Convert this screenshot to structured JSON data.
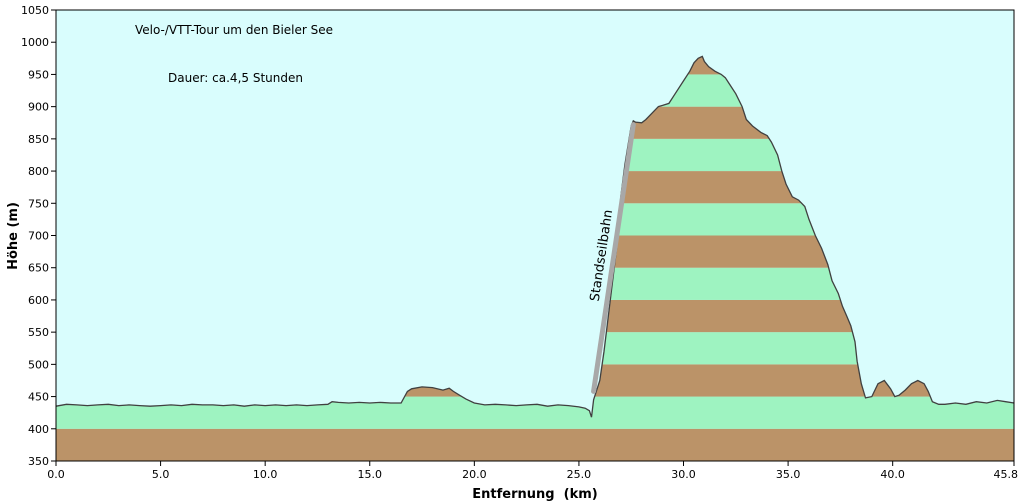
{
  "chart_data": {
    "type": "area",
    "title": "Velo-/VTT-Tour um den Bieler See",
    "subtitle": "Dauer: ca.4,5 Stunden",
    "xlabel": "Entfernung  (km)",
    "ylabel": "Höhe (m)",
    "xlim": [
      0,
      45.8
    ],
    "ylim": [
      350,
      1050
    ],
    "x_ticks": [
      0,
      5,
      10,
      15,
      20,
      25,
      30,
      35,
      40,
      45.8
    ],
    "x_tick_labels": [
      "0.0",
      "5.0",
      "10.0",
      "15.0",
      "20.0",
      "25.0",
      "30.0",
      "35.0",
      "40.0",
      "45.8"
    ],
    "y_ticks": [
      350,
      400,
      450,
      500,
      550,
      600,
      650,
      700,
      750,
      800,
      850,
      900,
      950,
      1000,
      1050
    ],
    "y_tick_labels": [
      "350",
      "400",
      "450",
      "500",
      "550",
      "600",
      "650",
      "700",
      "750",
      "800",
      "850",
      "900",
      "950",
      "1000",
      "1050"
    ],
    "band_interval": 50,
    "colors": {
      "plot_background": "#d9fdfd",
      "band_brown": "#bb9368",
      "band_green": "#9ef3c1",
      "profile_line": "#404040",
      "cable_line": "#a8a8a8"
    },
    "annotation": {
      "text": "Standseilbahn",
      "from": {
        "x": 25.7,
        "y": 458
      },
      "to": {
        "x": 27.6,
        "y": 872
      }
    },
    "x": [
      0,
      0.5,
      1.0,
      1.5,
      2.0,
      2.5,
      3.0,
      3.5,
      4.0,
      4.5,
      5.0,
      5.5,
      6.0,
      6.5,
      7.0,
      7.5,
      8.0,
      8.5,
      9.0,
      9.5,
      10.0,
      10.5,
      11.0,
      11.5,
      12.0,
      12.5,
      13.0,
      13.2,
      13.5,
      14.0,
      14.5,
      15.0,
      15.5,
      16.0,
      16.5,
      16.8,
      17.0,
      17.5,
      18.0,
      18.5,
      18.8,
      19.0,
      19.3,
      19.6,
      20.0,
      20.5,
      21.0,
      21.5,
      22.0,
      22.5,
      23.0,
      23.5,
      24.0,
      24.5,
      25.0,
      25.3,
      25.5,
      25.6,
      25.7,
      26.0,
      26.2,
      26.5,
      26.8,
      27.0,
      27.2,
      27.4,
      27.5,
      27.6,
      27.7,
      28.0,
      28.2,
      28.5,
      28.8,
      29.0,
      29.3,
      29.6,
      30.0,
      30.3,
      30.5,
      30.7,
      30.9,
      31.0,
      31.2,
      31.5,
      31.8,
      32.0,
      32.2,
      32.5,
      32.8,
      33.0,
      33.3,
      33.7,
      34.0,
      34.2,
      34.5,
      34.7,
      34.9,
      35.2,
      35.5,
      35.8,
      36.0,
      36.3,
      36.6,
      36.9,
      37.1,
      37.4,
      37.6,
      37.8,
      38.0,
      38.2,
      38.3,
      38.5,
      38.7,
      39.0,
      39.3,
      39.6,
      39.9,
      40.1,
      40.3,
      40.6,
      40.9,
      41.2,
      41.5,
      41.7,
      41.9,
      42.2,
      42.5,
      43.0,
      43.5,
      44.0,
      44.5,
      45.0,
      45.4,
      45.8
    ],
    "y": [
      435,
      438,
      437,
      436,
      437,
      438,
      436,
      437,
      436,
      435,
      436,
      437,
      436,
      438,
      437,
      437,
      436,
      437,
      435,
      437,
      436,
      437,
      436,
      437,
      436,
      437,
      438,
      442,
      441,
      440,
      441,
      440,
      441,
      440,
      440,
      458,
      462,
      465,
      464,
      460,
      463,
      458,
      452,
      446,
      440,
      437,
      438,
      437,
      436,
      437,
      438,
      435,
      437,
      436,
      434,
      432,
      428,
      418,
      445,
      475,
      520,
      600,
      680,
      760,
      810,
      850,
      870,
      878,
      876,
      875,
      880,
      890,
      900,
      902,
      905,
      920,
      940,
      955,
      968,
      975,
      978,
      970,
      962,
      955,
      950,
      945,
      935,
      920,
      900,
      880,
      870,
      860,
      855,
      845,
      825,
      800,
      780,
      760,
      755,
      745,
      725,
      700,
      680,
      655,
      630,
      610,
      590,
      575,
      560,
      535,
      505,
      470,
      448,
      450,
      470,
      475,
      462,
      450,
      452,
      460,
      470,
      475,
      470,
      458,
      442,
      438,
      438,
      440,
      438,
      442,
      440,
      444,
      442,
      440
    ]
  }
}
